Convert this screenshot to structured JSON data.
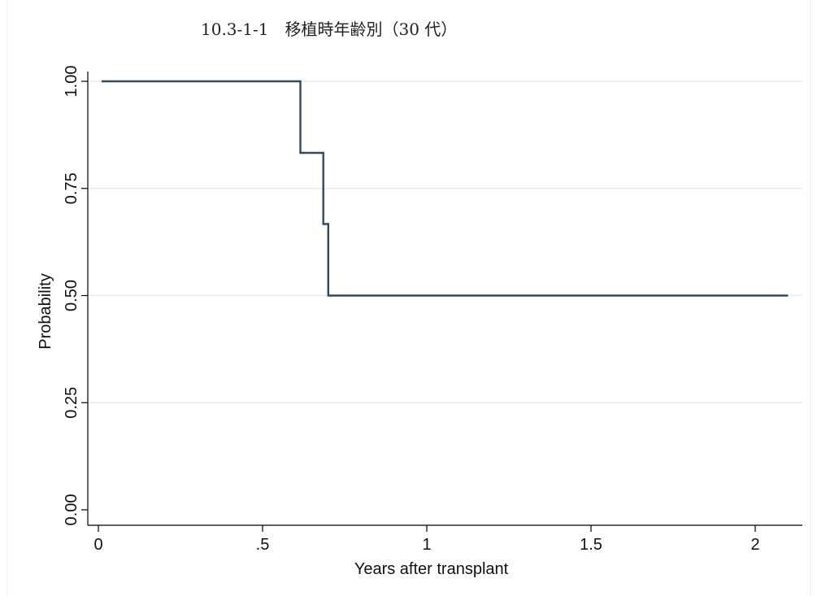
{
  "chart_data": {
    "type": "line",
    "title": "10.3-1-1　移植時年齢別（30 代）",
    "xlabel": "Years after transplant",
    "ylabel": "Probability",
    "xlim": [
      0,
      2.1
    ],
    "ylim": [
      0,
      1
    ],
    "x_ticks": [
      0,
      0.5,
      1,
      1.5,
      2
    ],
    "x_tick_labels": [
      "0",
      ".5",
      "1",
      "1.5",
      "2"
    ],
    "y_ticks": [
      0,
      0.25,
      0.5,
      0.75,
      1
    ],
    "y_tick_labels": [
      "0.00",
      "0.25",
      "0.50",
      "0.75",
      "1.00"
    ],
    "grid": "horizontal",
    "line_style": "step",
    "series": [
      {
        "color": "#2d4a63",
        "points": [
          {
            "x": 0.01,
            "y": 1.0
          },
          {
            "x": 0.615,
            "y": 1.0
          },
          {
            "x": 0.615,
            "y": 0.833
          },
          {
            "x": 0.685,
            "y": 0.833
          },
          {
            "x": 0.685,
            "y": 0.667
          },
          {
            "x": 0.7,
            "y": 0.667
          },
          {
            "x": 0.7,
            "y": 0.5
          },
          {
            "x": 2.1,
            "y": 0.5
          }
        ]
      }
    ]
  }
}
